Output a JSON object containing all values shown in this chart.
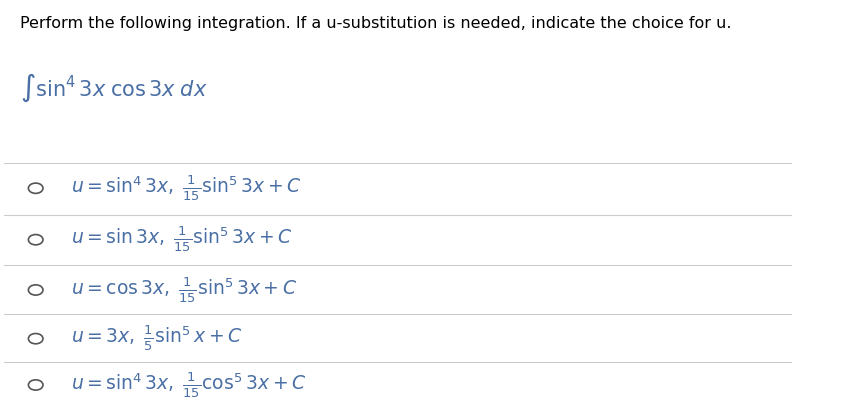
{
  "background_color": "#ffffff",
  "text_color": "#000000",
  "math_color": "#4a6fa5",
  "title_text": "Perform the following integration. If a u-substitution is needed, indicate the choice for u.",
  "integral_expr": "$\\int \\sin^4 3x \\; \\cos 3x \\; dx$",
  "options": [
    "$u = \\sin^4 3x, \\; \\frac{1}{15}\\sin^5 3x + C$",
    "$u = \\sin 3x, \\; \\frac{1}{15}\\sin^5 3x + C$",
    "$u = \\cos 3x, \\; \\frac{1}{15}\\sin^5 3x + C$",
    "$u = 3x, \\; \\frac{1}{5}\\sin^5 x + C$",
    "$u = \\sin^4 3x, \\; \\frac{1}{15}\\cos^5 3x + C$"
  ],
  "line_color": "#cccccc",
  "circle_color": "#555555",
  "title_fontsize": 11.5,
  "integral_fontsize": 15,
  "option_fontsize": 13.5,
  "figsize": [
    8.57,
    4.07
  ],
  "dpi": 100
}
